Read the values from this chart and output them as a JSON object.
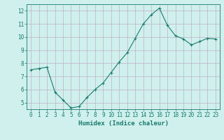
{
  "x": [
    0,
    1,
    2,
    3,
    4,
    5,
    6,
    7,
    8,
    9,
    10,
    11,
    12,
    13,
    14,
    15,
    16,
    17,
    18,
    19,
    20,
    21,
    22,
    23
  ],
  "y": [
    7.5,
    7.6,
    7.7,
    5.8,
    5.2,
    4.6,
    4.7,
    5.4,
    6.0,
    6.5,
    7.3,
    8.1,
    8.8,
    9.9,
    11.0,
    11.7,
    12.2,
    10.9,
    10.1,
    9.85,
    9.4,
    9.65,
    9.9,
    9.85
  ],
  "line_color": "#1a7a6e",
  "marker": "+",
  "marker_size": 3,
  "bg_color": "#cff0ec",
  "grid_color": "#c0b0c8",
  "axis_color": "#1a7a6e",
  "xlabel": "Humidex (Indice chaleur)",
  "xlim": [
    -0.5,
    23.5
  ],
  "ylim": [
    4.5,
    12.5
  ],
  "yticks": [
    5,
    6,
    7,
    8,
    9,
    10,
    11,
    12
  ],
  "xticks": [
    0,
    1,
    2,
    3,
    4,
    5,
    6,
    7,
    8,
    9,
    10,
    11,
    12,
    13,
    14,
    15,
    16,
    17,
    18,
    19,
    20,
    21,
    22,
    23
  ],
  "tick_fontsize": 5.5,
  "xlabel_fontsize": 6.5
}
